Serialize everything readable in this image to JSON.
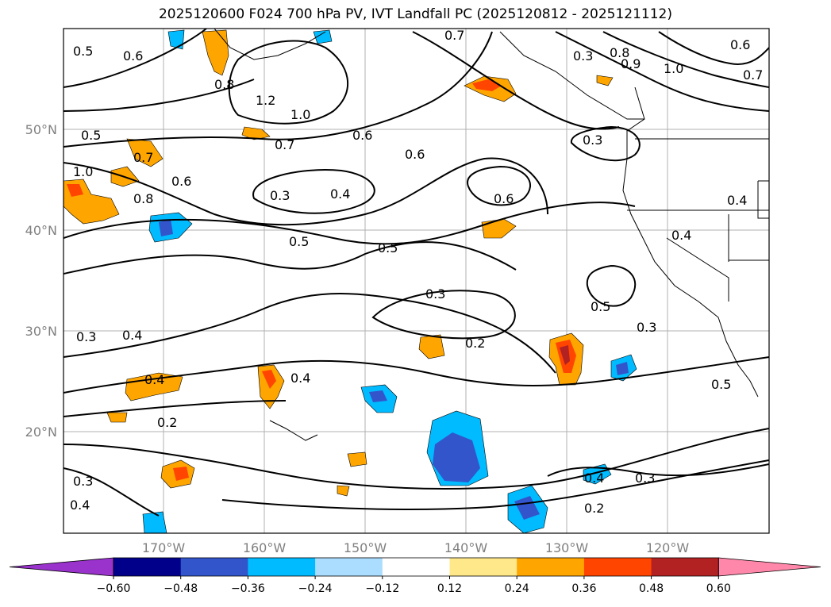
{
  "title": "2025120600 F024 700 hPa PV, IVT Landfall PC (2025120812 - 2025121112)",
  "longitude_labels": [
    "170°W",
    "160°W",
    "150°W",
    "140°W",
    "130°W",
    "120°W"
  ],
  "latitude_labels": [
    "50°N",
    "40°N",
    "30°N",
    "20°N"
  ],
  "contour_labels": [
    "0.5",
    "0.6",
    "0.7",
    "0.8",
    "1.2",
    "1.0",
    "0.6",
    "0.7",
    "0.3",
    "0.8",
    "0.9",
    "1.0",
    "0.6",
    "0.7",
    "0.5",
    "0.7",
    "1.0",
    "0.6",
    "0.8",
    "0.3",
    "0.4",
    "0.6",
    "0.6",
    "0.5",
    "0.5",
    "0.3",
    "0.4",
    "0.4",
    "0.3",
    "0.4",
    "0.3",
    "0.2",
    "0.4",
    "0.5",
    "0.3",
    "0.5",
    "0.2",
    "0.3",
    "0.4",
    "0.4",
    "0.3",
    "0.4",
    "0.2"
  ],
  "colorbar": {
    "tick_labels": [
      "−0.60",
      "−0.48",
      "−0.36",
      "−0.24",
      "−0.12",
      "0.12",
      "0.24",
      "0.36",
      "0.48",
      "0.60"
    ],
    "colors": [
      "#9933cc",
      "#00008b",
      "#3355cc",
      "#00bbff",
      "#aaddff",
      "#ffffff",
      "#ffe88a",
      "#ffa500",
      "#ff4500",
      "#b22222",
      "#ff88aa"
    ]
  }
}
